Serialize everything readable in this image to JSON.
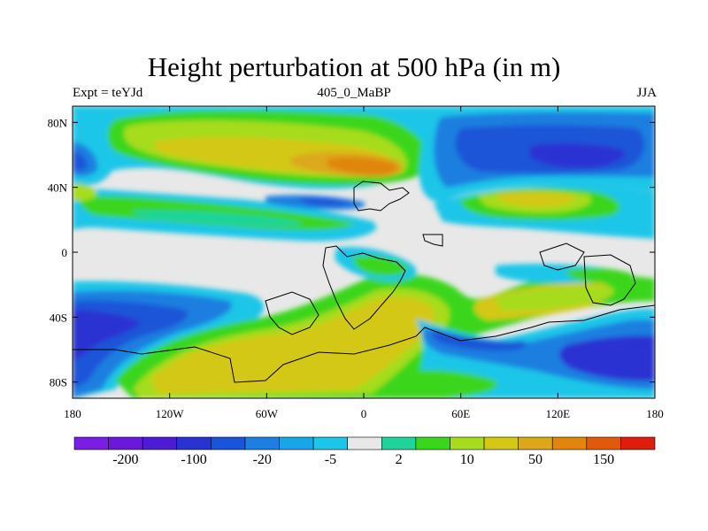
{
  "chart_data": {
    "type": "heatmap",
    "title": "Height perturbation at 500 hPa (in m)",
    "subtitle_left": "Expt = teYJd",
    "subtitle_center": "405_0_MaBP",
    "subtitle_right": "JJA",
    "x_ticks": [
      "180",
      "120W",
      "60W",
      "0",
      "60E",
      "120E",
      "180"
    ],
    "y_ticks": [
      "80N",
      "40N",
      "0",
      "40S",
      "80S"
    ],
    "xlim": [
      -180,
      180
    ],
    "ylim": [
      -90,
      90
    ],
    "colorbar": {
      "colors": [
        "#7a1ee6",
        "#6a18dc",
        "#4d1ad6",
        "#2a32d2",
        "#1a55d8",
        "#1e7fe0",
        "#18a6e6",
        "#1cc6e8",
        "#e8e8e8",
        "#1ed49a",
        "#3ad61c",
        "#a6dc1c",
        "#d4c814",
        "#dca81a",
        "#e0860e",
        "#e05a0c",
        "#e01c0c"
      ],
      "labels": [
        "-200",
        "-100",
        "-20",
        "-5",
        "2",
        "10",
        "50",
        "150"
      ]
    }
  }
}
